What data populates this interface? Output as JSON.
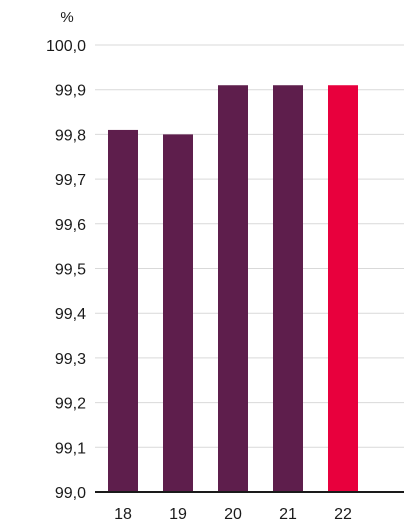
{
  "chart_data": {
    "type": "bar",
    "unit_label": "%",
    "categories": [
      "18",
      "19",
      "20",
      "21",
      "22"
    ],
    "values": [
      99.81,
      99.8,
      99.91,
      99.91,
      99.91
    ],
    "bar_colors": [
      "#5e1e4c",
      "#5e1e4c",
      "#5e1e4c",
      "#5e1e4c",
      "#e8003d"
    ],
    "ylim": [
      99.0,
      100.0
    ],
    "y_ticks": [
      "99,0",
      "99,1",
      "99,2",
      "99,3",
      "99,4",
      "99,5",
      "99,6",
      "99,7",
      "99,8",
      "99,9",
      "100,0"
    ],
    "grid": true,
    "colors": {
      "grid": "#d9d9d9",
      "axis": "#1a1a1a"
    }
  }
}
